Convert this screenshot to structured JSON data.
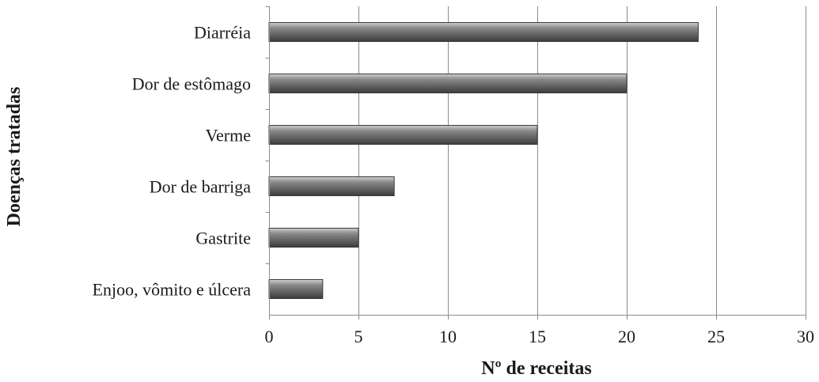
{
  "chart_data": {
    "type": "bar",
    "orientation": "horizontal",
    "categories": [
      "Diarréia",
      "Dor de estômago",
      "Verme",
      "Dor de barriga",
      "Gastrite",
      "Enjoo, vômito e úlcera"
    ],
    "values": [
      24,
      20,
      15,
      7,
      5,
      3
    ],
    "title": "",
    "xlabel": "Nº de receitas",
    "ylabel": "Doenças tratadas",
    "xlim": [
      0,
      30
    ],
    "xticks": [
      0,
      5,
      10,
      15,
      20,
      25,
      30
    ],
    "grid": "vertical",
    "legend": "none",
    "bar_color": "#6e6e6e"
  }
}
